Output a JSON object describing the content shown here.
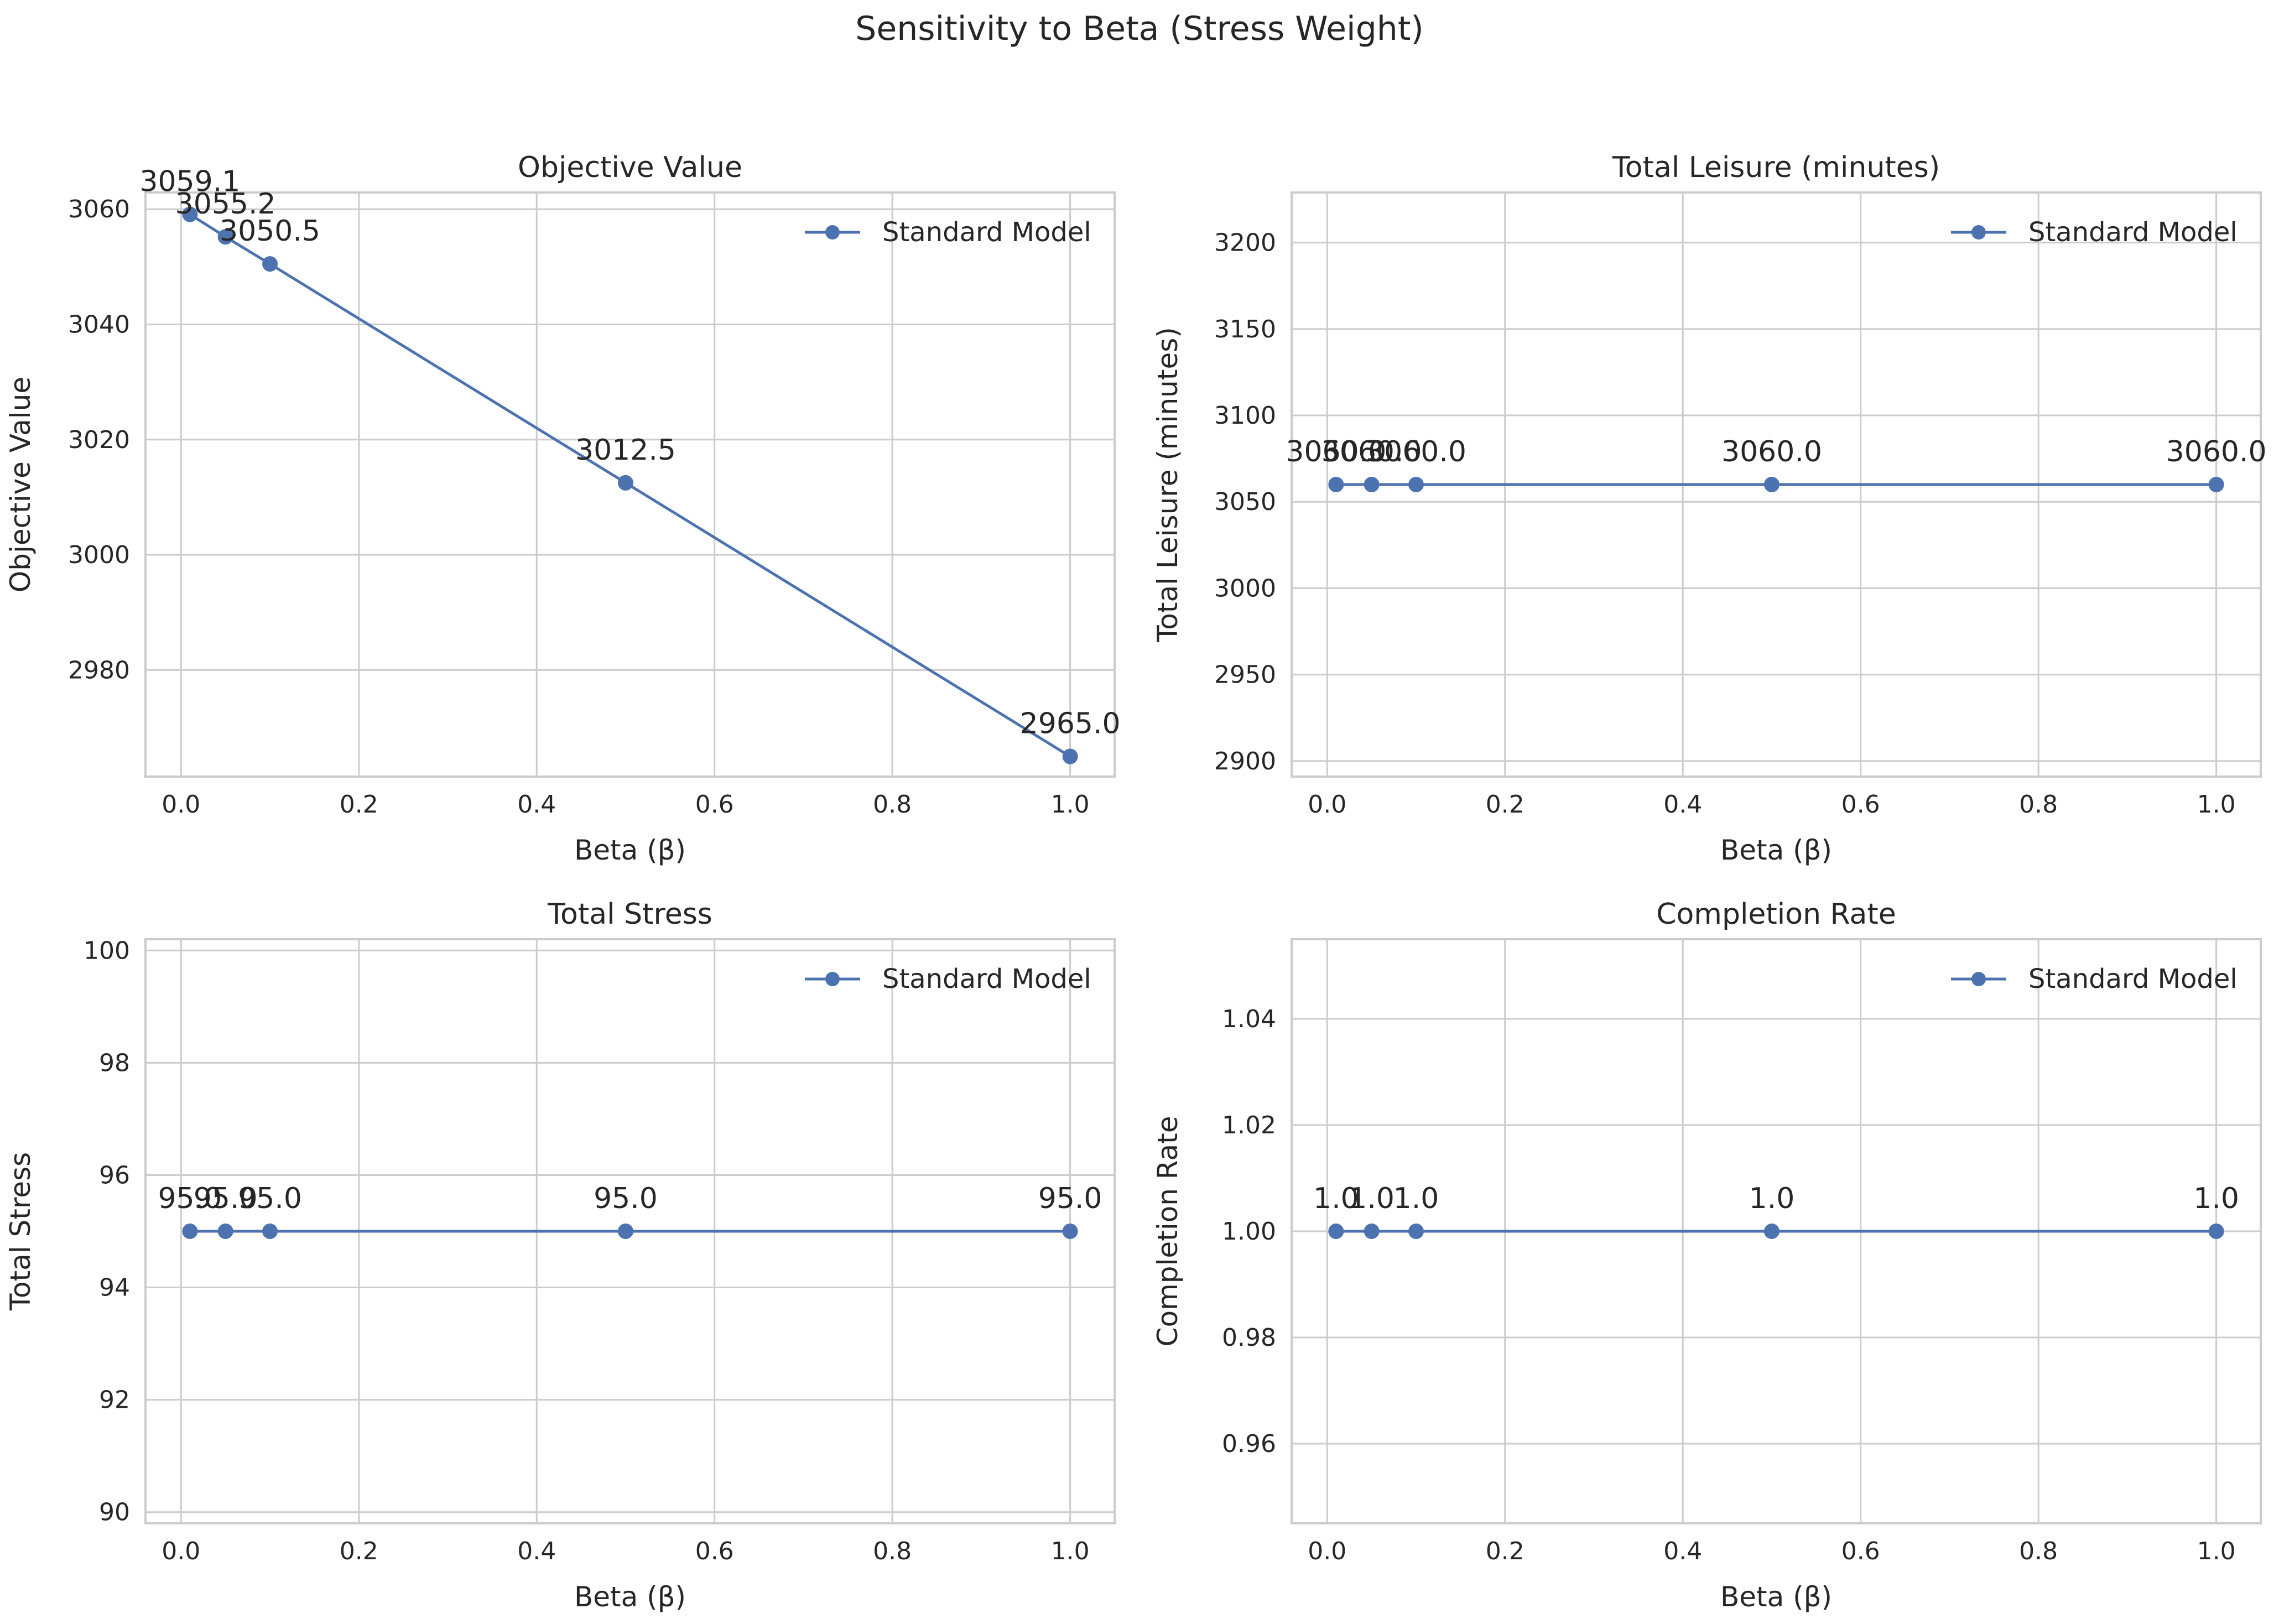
{
  "figure": {
    "suptitle": "Sensitivity to Beta (Stress Weight)"
  },
  "style": {
    "series_color": "#4c72b0",
    "grid_color": "#cccccc",
    "spine_color": "#cccccc",
    "text_color": "#262626",
    "background": "#ffffff"
  },
  "chart_data": [
    {
      "type": "line",
      "title": "Objective Value",
      "xlabel": "Beta (β)",
      "ylabel": "Objective Value",
      "xlim": [
        -0.04,
        1.05
      ],
      "ylim": [
        2961.5,
        3062.9
      ],
      "xticks": [
        0.0,
        0.2,
        0.4,
        0.6,
        0.8,
        1.0
      ],
      "xtick_labels": [
        "0.0",
        "0.2",
        "0.4",
        "0.6",
        "0.8",
        "1.0"
      ],
      "yticks": [
        2980,
        3000,
        3020,
        3040,
        3060
      ],
      "ytick_labels": [
        "2980",
        "3000",
        "3020",
        "3040",
        "3060"
      ],
      "grid": true,
      "legend_position": "top-right",
      "series": [
        {
          "name": "Standard Model",
          "x": [
            0.01,
            0.05,
            0.1,
            0.5,
            1.0
          ],
          "y": [
            3059.1,
            3055.2,
            3050.5,
            3012.5,
            2965.0
          ],
          "labels": [
            "3059.1",
            "3055.2",
            "3050.5",
            "3012.5",
            "2965.0"
          ]
        }
      ]
    },
    {
      "type": "line",
      "title": "Total Leisure (minutes)",
      "xlabel": "Beta (β)",
      "ylabel": "Total Leisure (minutes)",
      "xlim": [
        -0.04,
        1.05
      ],
      "ylim": [
        2891,
        3229
      ],
      "xticks": [
        0.0,
        0.2,
        0.4,
        0.6,
        0.8,
        1.0
      ],
      "xtick_labels": [
        "0.0",
        "0.2",
        "0.4",
        "0.6",
        "0.8",
        "1.0"
      ],
      "yticks": [
        2900,
        2950,
        3000,
        3050,
        3100,
        3150,
        3200
      ],
      "ytick_labels": [
        "2900",
        "2950",
        "3000",
        "3050",
        "3100",
        "3150",
        "3200"
      ],
      "grid": true,
      "legend_position": "top-right",
      "series": [
        {
          "name": "Standard Model",
          "x": [
            0.01,
            0.05,
            0.1,
            0.5,
            1.0
          ],
          "y": [
            3060.0,
            3060.0,
            3060.0,
            3060.0,
            3060.0
          ],
          "labels": [
            "3060.0",
            "3060.0",
            "3060.0",
            "3060.0",
            "3060.0"
          ]
        }
      ]
    },
    {
      "type": "line",
      "title": "Total Stress",
      "xlabel": "Beta (β)",
      "ylabel": "Total Stress",
      "xlim": [
        -0.04,
        1.05
      ],
      "ylim": [
        89.8,
        100.2
      ],
      "xticks": [
        0.0,
        0.2,
        0.4,
        0.6,
        0.8,
        1.0
      ],
      "xtick_labels": [
        "0.0",
        "0.2",
        "0.4",
        "0.6",
        "0.8",
        "1.0"
      ],
      "yticks": [
        90,
        92,
        94,
        96,
        98,
        100
      ],
      "ytick_labels": [
        "90",
        "92",
        "94",
        "96",
        "98",
        "100"
      ],
      "grid": true,
      "legend_position": "top-right",
      "series": [
        {
          "name": "Standard Model",
          "x": [
            0.01,
            0.05,
            0.1,
            0.5,
            1.0
          ],
          "y": [
            95.0,
            95.0,
            95.0,
            95.0,
            95.0
          ],
          "labels": [
            "95.0",
            "95.0",
            "95.0",
            "95.0",
            "95.0"
          ]
        }
      ]
    },
    {
      "type": "line",
      "title": "Completion Rate",
      "xlabel": "Beta (β)",
      "ylabel": "Completion Rate",
      "xlim": [
        -0.04,
        1.05
      ],
      "ylim": [
        0.945,
        1.055
      ],
      "xticks": [
        0.0,
        0.2,
        0.4,
        0.6,
        0.8,
        1.0
      ],
      "xtick_labels": [
        "0.0",
        "0.2",
        "0.4",
        "0.6",
        "0.8",
        "1.0"
      ],
      "yticks": [
        0.96,
        0.98,
        1.0,
        1.02,
        1.04
      ],
      "ytick_labels": [
        "0.96",
        "0.98",
        "1.00",
        "1.02",
        "1.04"
      ],
      "grid": true,
      "legend_position": "top-right",
      "series": [
        {
          "name": "Standard Model",
          "x": [
            0.01,
            0.05,
            0.1,
            0.5,
            1.0
          ],
          "y": [
            1.0,
            1.0,
            1.0,
            1.0,
            1.0
          ],
          "labels": [
            "1.0",
            "1.0",
            "1.0",
            "1.0",
            "1.0"
          ]
        }
      ]
    }
  ]
}
